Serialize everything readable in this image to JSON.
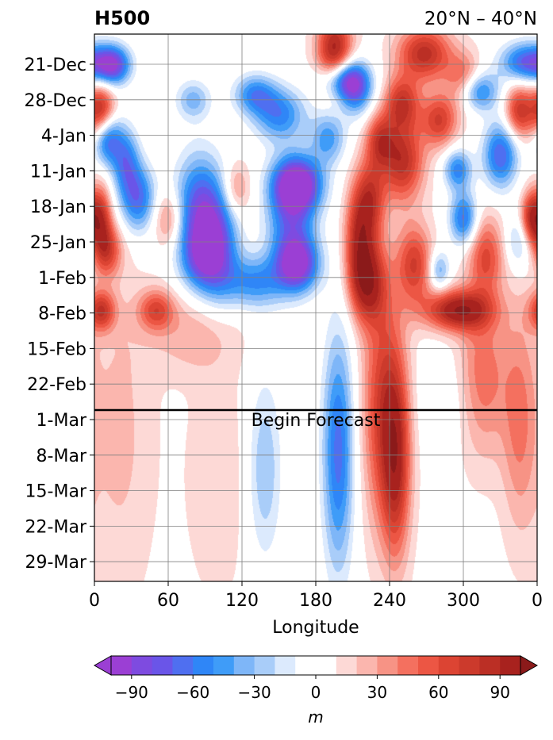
{
  "chart_data": {
    "type": "heatmap",
    "title": "H500",
    "subtitle": "20°N – 40°N",
    "xlabel": "Longitude",
    "ylabel": "",
    "x_ticks": [
      "0",
      "60",
      "120",
      "180",
      "240",
      "300",
      "0"
    ],
    "y_ticks": [
      "21-Dec",
      "28-Dec",
      "4-Jan",
      "11-Jan",
      "18-Jan",
      "25-Jan",
      "1-Feb",
      "8-Feb",
      "15-Feb",
      "22-Feb",
      "1-Mar",
      "8-Mar",
      "15-Mar",
      "22-Mar",
      "29-Mar"
    ],
    "annotation": "Begin Forecast",
    "forecast_start": "27-Feb",
    "grid": true,
    "colorbar": {
      "label": "m",
      "tick_labels": [
        "−90",
        "−60",
        "−30",
        "0",
        "30",
        "60",
        "90"
      ],
      "tick_values": [
        -90,
        -60,
        -30,
        0,
        30,
        60,
        90
      ],
      "levels": [
        -105,
        -95,
        -85,
        -75,
        -65,
        -55,
        -45,
        -35,
        -25,
        -15,
        -5,
        5,
        15,
        25,
        35,
        45,
        55,
        65,
        75,
        85,
        95,
        105
      ],
      "colors": [
        "#9b3fd4",
        "#7e4be0",
        "#6a55e8",
        "#4f6ff0",
        "#2f86f7",
        "#3f9cf8",
        "#7eb6f8",
        "#a9cdf9",
        "#dceafd",
        "#ffffff",
        "#ffffff",
        "#fdd9d6",
        "#fbb6ae",
        "#f79385",
        "#f4705f",
        "#ec5644",
        "#dc4433",
        "#cc3a2c",
        "#bb2f25",
        "#a8221e"
      ],
      "extend_low_color": "#9b3fd4",
      "extend_high_color": "#8b1a1a"
    },
    "anomaly_blobs": [
      {
        "lon": 15,
        "day": 9,
        "value": -85,
        "lon_w": 10,
        "day_w": 3
      },
      {
        "lon": 80,
        "day": 21,
        "value": -40,
        "lon_w": 10,
        "day_w": 3
      },
      {
        "lon": 200,
        "day": 14,
        "value": -85,
        "lon_w": 12,
        "day_w": 3
      },
      {
        "lon": 212,
        "day": 17,
        "value": -70,
        "lon_w": 10,
        "day_w": 4
      },
      {
        "lon": 310,
        "day": 18,
        "value": -75,
        "lon_w": 12,
        "day_w": 3
      },
      {
        "lon": 352,
        "day": 8,
        "value": -80,
        "lon_w": 15,
        "day_w": 3
      },
      {
        "lon": 130,
        "day": 19,
        "value": -55,
        "lon_w": 12,
        "day_w": 3
      },
      {
        "lon": 150,
        "day": 26,
        "value": -60,
        "lon_w": 15,
        "day_w": 4
      },
      {
        "lon": 190,
        "day": 34,
        "value": -50,
        "lon_w": 10,
        "day_w": 4
      },
      {
        "lon": 10,
        "day": 34,
        "value": -75,
        "lon_w": 8,
        "day_w": 4
      },
      {
        "lon": 25,
        "day": 42,
        "value": -60,
        "lon_w": 8,
        "day_w": 5
      },
      {
        "lon": 35,
        "day": 55,
        "value": -70,
        "lon_w": 10,
        "day_w": 5
      },
      {
        "lon": 330,
        "day": 40,
        "value": -75,
        "lon_w": 10,
        "day_w": 5
      },
      {
        "lon": 295,
        "day": 45,
        "value": -60,
        "lon_w": 8,
        "day_w": 3
      },
      {
        "lon": 85,
        "day": 58,
        "value": -75,
        "lon_w": 14,
        "day_w": 8
      },
      {
        "lon": 100,
        "day": 72,
        "value": -70,
        "lon_w": 12,
        "day_w": 8
      },
      {
        "lon": 85,
        "day": 76,
        "value": -55,
        "lon_w": 12,
        "day_w": 5
      },
      {
        "lon": 165,
        "day": 50,
        "value": -100,
        "lon_w": 14,
        "day_w": 4
      },
      {
        "lon": 160,
        "day": 62,
        "value": -70,
        "lon_w": 14,
        "day_w": 8
      },
      {
        "lon": 165,
        "day": 78,
        "value": -90,
        "lon_w": 12,
        "day_w": 4
      },
      {
        "lon": 130,
        "day": 84,
        "value": -55,
        "lon_w": 18,
        "day_w": 4
      },
      {
        "lon": 300,
        "day": 62,
        "value": -70,
        "lon_w": 8,
        "day_w": 4
      },
      {
        "lon": 280,
        "day": 80,
        "value": -45,
        "lon_w": 6,
        "day_w": 3
      },
      {
        "lon": 345,
        "day": 70,
        "value": -35,
        "lon_w": 8,
        "day_w": 4
      },
      {
        "lon": 198,
        "day": 146,
        "value": -70,
        "lon_w": 9,
        "day_w": 18
      },
      {
        "lon": 138,
        "day": 152,
        "value": -35,
        "lon_w": 10,
        "day_w": 14
      },
      {
        "lon": 290,
        "day": 128,
        "value": -12,
        "lon_w": 20,
        "day_w": 8
      },
      {
        "lon": 195,
        "day": 5,
        "value": 95,
        "lon_w": 10,
        "day_w": 6
      },
      {
        "lon": 268,
        "day": 5,
        "value": 80,
        "lon_w": 15,
        "day_w": 4
      },
      {
        "lon": 300,
        "day": 15,
        "value": 60,
        "lon_w": 10,
        "day_w": 4
      },
      {
        "lon": 250,
        "day": 22,
        "value": 70,
        "lon_w": 10,
        "day_w": 4
      },
      {
        "lon": 5,
        "day": 25,
        "value": 85,
        "lon_w": 8,
        "day_w": 4
      },
      {
        "lon": 345,
        "day": 25,
        "value": 70,
        "lon_w": 8,
        "day_w": 4
      },
      {
        "lon": 232,
        "day": 35,
        "value": 60,
        "lon_w": 8,
        "day_w": 4
      },
      {
        "lon": 250,
        "day": 42,
        "value": 80,
        "lon_w": 12,
        "day_w": 6
      },
      {
        "lon": 280,
        "day": 28,
        "value": 65,
        "lon_w": 10,
        "day_w": 4
      },
      {
        "lon": 225,
        "day": 55,
        "value": 60,
        "lon_w": 8,
        "day_w": 6
      },
      {
        "lon": 215,
        "day": 68,
        "value": 75,
        "lon_w": 8,
        "day_w": 8
      },
      {
        "lon": 222,
        "day": 84,
        "value": 85,
        "lon_w": 10,
        "day_w": 6
      },
      {
        "lon": 260,
        "day": 78,
        "value": 65,
        "lon_w": 10,
        "day_w": 6
      },
      {
        "lon": 318,
        "day": 75,
        "value": 55,
        "lon_w": 10,
        "day_w": 6
      },
      {
        "lon": 355,
        "day": 62,
        "value": 80,
        "lon_w": 6,
        "day_w": 4
      },
      {
        "lon": 5,
        "day": 62,
        "value": 65,
        "lon_w": 6,
        "day_w": 5
      },
      {
        "lon": 10,
        "day": 73,
        "value": 60,
        "lon_w": 8,
        "day_w": 4
      },
      {
        "lon": 60,
        "day": 62,
        "value": 40,
        "lon_w": 8,
        "day_w": 4
      },
      {
        "lon": 115,
        "day": 52,
        "value": 35,
        "lon_w": 8,
        "day_w": 4
      },
      {
        "lon": 295,
        "day": 97,
        "value": 100,
        "lon_w": 18,
        "day_w": 3
      },
      {
        "lon": 5,
        "day": 94,
        "value": 70,
        "lon_w": 8,
        "day_w": 3
      },
      {
        "lon": 50,
        "day": 97,
        "value": 55,
        "lon_w": 10,
        "day_w": 3
      },
      {
        "lon": 235,
        "day": 130,
        "value": 65,
        "lon_w": 12,
        "day_w": 18
      },
      {
        "lon": 245,
        "day": 150,
        "value": 70,
        "lon_w": 8,
        "day_w": 14
      },
      {
        "lon": 315,
        "day": 120,
        "value": 45,
        "lon_w": 14,
        "day_w": 12
      },
      {
        "lon": 345,
        "day": 135,
        "value": 35,
        "lon_w": 10,
        "day_w": 16
      },
      {
        "lon": 80,
        "day": 105,
        "value": 22,
        "lon_w": 25,
        "day_w": 6
      },
      {
        "lon": 20,
        "day": 140,
        "value": 18,
        "lon_w": 20,
        "day_w": 25
      },
      {
        "lon": 100,
        "day": 155,
        "value": 14,
        "lon_w": 18,
        "day_w": 18
      }
    ]
  }
}
